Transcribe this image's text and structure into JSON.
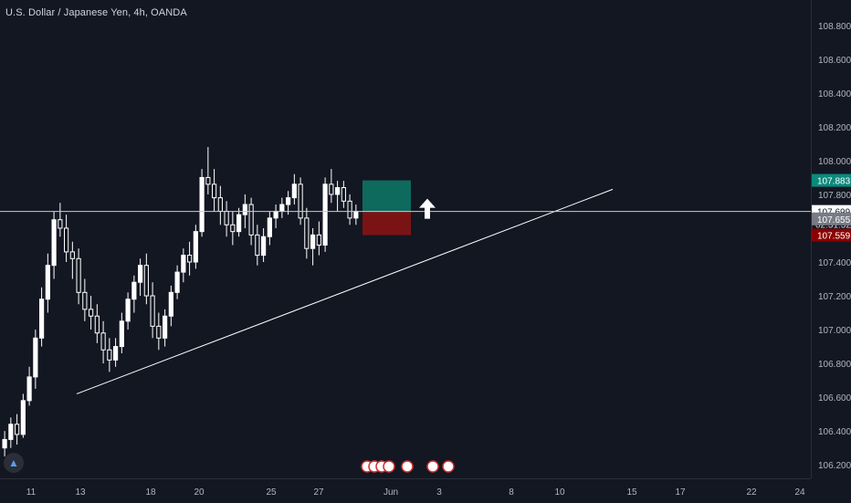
{
  "header": {
    "symbol_title": "U.S. Dollar / Japanese Yen, 4h, OANDA"
  },
  "colors": {
    "background": "#131722",
    "candle_body": "#ffffff",
    "target_zone": "#0f6a5e",
    "stop_zone": "#7a1414",
    "target_label": "#0a8a7d",
    "stop_label": "#8b0000",
    "current_label": "#787b86"
  },
  "chart_data": {
    "type": "candlestick",
    "title": "U.S. Dollar / Japanese Yen, 4h, OANDA",
    "ylim": [
      106.12,
      108.95
    ],
    "y_ticks": [
      "108.800",
      "108.600",
      "108.400",
      "108.200",
      "108.000",
      "107.800",
      "107.600",
      "107.400",
      "107.200",
      "107.000",
      "106.800",
      "106.600",
      "106.400",
      "106.200"
    ],
    "y_tick_values": [
      108.8,
      108.6,
      108.4,
      108.2,
      108.0,
      107.8,
      107.6,
      107.4,
      107.2,
      107.0,
      106.8,
      106.6,
      106.4,
      106.2
    ],
    "x_ticks": [
      "11",
      "13",
      "18",
      "20",
      "25",
      "27",
      "Jun",
      "3",
      "8",
      "10",
      "15",
      "17",
      "22",
      "24"
    ],
    "price_labels": {
      "target": "107.883",
      "crosshair": "107.699",
      "countdown": "02:31:32",
      "current": "107.655",
      "stop": "107.559"
    },
    "trendline": {
      "start_bar": 12,
      "start_price": 106.62,
      "end_bar": 96,
      "end_price": 107.83
    },
    "position": {
      "entry": 107.699,
      "target": 107.883,
      "stop": 107.559
    },
    "ohlc": [
      [
        106.3,
        106.4,
        106.25,
        106.35
      ],
      [
        106.35,
        106.48,
        106.3,
        106.44
      ],
      [
        106.44,
        106.5,
        106.32,
        106.38
      ],
      [
        106.38,
        106.62,
        106.36,
        106.58
      ],
      [
        106.58,
        106.78,
        106.55,
        106.72
      ],
      [
        106.72,
        107.0,
        106.65,
        106.95
      ],
      [
        106.95,
        107.25,
        106.9,
        107.18
      ],
      [
        107.18,
        107.45,
        107.1,
        107.38
      ],
      [
        107.38,
        107.7,
        107.3,
        107.65
      ],
      [
        107.65,
        107.75,
        107.55,
        107.6
      ],
      [
        107.6,
        107.68,
        107.4,
        107.46
      ],
      [
        107.46,
        107.52,
        107.3,
        107.42
      ],
      [
        107.42,
        107.48,
        107.15,
        107.22
      ],
      [
        107.22,
        107.3,
        107.05,
        107.12
      ],
      [
        107.12,
        107.2,
        107.0,
        107.08
      ],
      [
        107.08,
        107.15,
        106.92,
        106.98
      ],
      [
        106.98,
        107.05,
        106.8,
        106.88
      ],
      [
        106.88,
        106.95,
        106.75,
        106.82
      ],
      [
        106.82,
        106.95,
        106.78,
        106.9
      ],
      [
        106.9,
        107.1,
        106.86,
        107.05
      ],
      [
        107.05,
        107.22,
        107.0,
        107.18
      ],
      [
        107.18,
        107.32,
        107.1,
        107.28
      ],
      [
        107.28,
        107.42,
        107.2,
        107.38
      ],
      [
        107.38,
        107.45,
        107.15,
        107.2
      ],
      [
        107.2,
        107.28,
        106.95,
        107.02
      ],
      [
        107.02,
        107.1,
        106.88,
        106.95
      ],
      [
        106.95,
        107.12,
        106.9,
        107.08
      ],
      [
        107.08,
        107.26,
        107.02,
        107.22
      ],
      [
        107.22,
        107.38,
        107.18,
        107.34
      ],
      [
        107.34,
        107.48,
        107.28,
        107.44
      ],
      [
        107.44,
        107.52,
        107.32,
        107.4
      ],
      [
        107.4,
        107.62,
        107.36,
        107.58
      ],
      [
        107.58,
        107.95,
        107.55,
        107.9
      ],
      [
        107.9,
        108.08,
        107.8,
        107.86
      ],
      [
        107.86,
        107.95,
        107.7,
        107.78
      ],
      [
        107.78,
        107.85,
        107.62,
        107.7
      ],
      [
        107.7,
        107.76,
        107.55,
        107.62
      ],
      [
        107.62,
        107.7,
        107.5,
        107.58
      ],
      [
        107.58,
        107.72,
        107.55,
        107.68
      ],
      [
        107.68,
        107.8,
        107.6,
        107.74
      ],
      [
        107.74,
        107.78,
        107.5,
        107.56
      ],
      [
        107.56,
        107.62,
        107.38,
        107.44
      ],
      [
        107.44,
        107.6,
        107.4,
        107.55
      ],
      [
        107.55,
        107.7,
        107.5,
        107.66
      ],
      [
        107.66,
        107.74,
        107.6,
        107.7
      ],
      [
        107.7,
        107.78,
        107.66,
        107.74
      ],
      [
        107.74,
        107.82,
        107.68,
        107.78
      ],
      [
        107.78,
        107.92,
        107.74,
        107.86
      ],
      [
        107.86,
        107.9,
        107.62,
        107.66
      ],
      [
        107.66,
        107.72,
        107.42,
        107.48
      ],
      [
        107.48,
        107.6,
        107.38,
        107.56
      ],
      [
        107.56,
        107.64,
        107.44,
        107.5
      ],
      [
        107.5,
        107.9,
        107.46,
        107.86
      ],
      [
        107.86,
        107.95,
        107.75,
        107.8
      ],
      [
        107.8,
        107.88,
        107.7,
        107.84
      ],
      [
        107.84,
        107.88,
        107.72,
        107.76
      ],
      [
        107.76,
        107.8,
        107.62,
        107.66
      ],
      [
        107.66,
        107.74,
        107.62,
        107.7
      ]
    ]
  }
}
